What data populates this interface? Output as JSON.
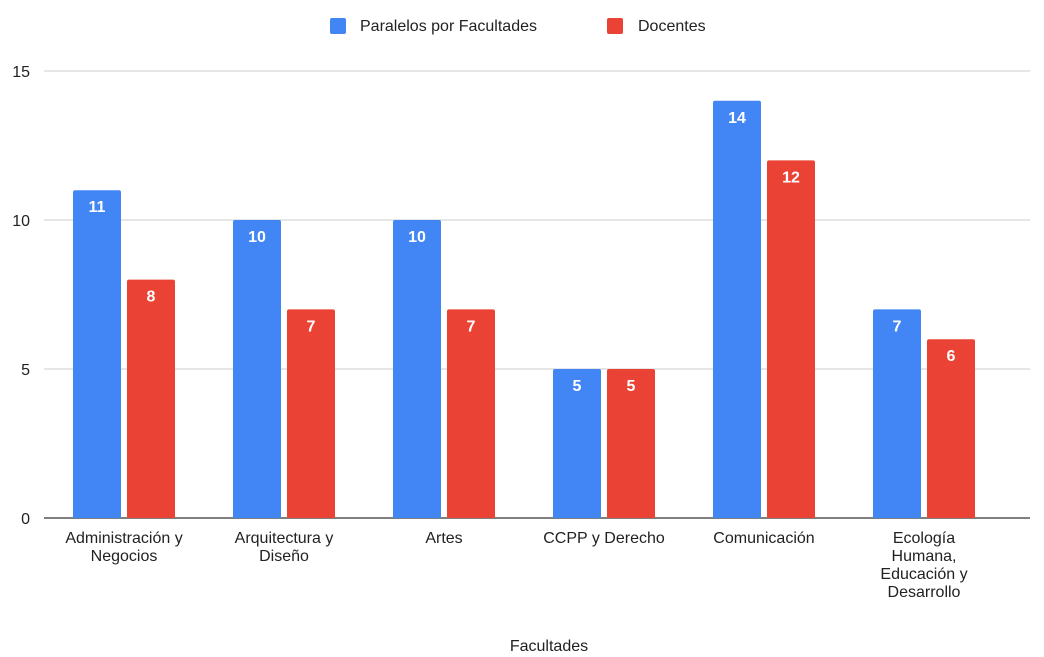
{
  "chart_data": {
    "type": "bar",
    "title": "",
    "xlabel": "Facultades",
    "ylabel": "",
    "ylim": [
      0,
      15
    ],
    "yticks": [
      0,
      5,
      10,
      15
    ],
    "grid": true,
    "legend_position": "top",
    "categories": [
      [
        "Administración y",
        "Negocios"
      ],
      [
        "Arquitectura y",
        "Diseño"
      ],
      [
        "Artes"
      ],
      [
        "CCPP y Derecho"
      ],
      [
        "Comunicación"
      ],
      [
        "Ecología",
        "Humana,",
        "Educación y",
        "Desarrollo"
      ]
    ],
    "series": [
      {
        "name": "Paralelos por Facultades",
        "color": "#4285F4",
        "values": [
          11,
          10,
          10,
          5,
          14,
          7
        ]
      },
      {
        "name": "Docentes",
        "color": "#EA4335",
        "values": [
          8,
          7,
          7,
          5,
          12,
          6
        ]
      }
    ]
  }
}
